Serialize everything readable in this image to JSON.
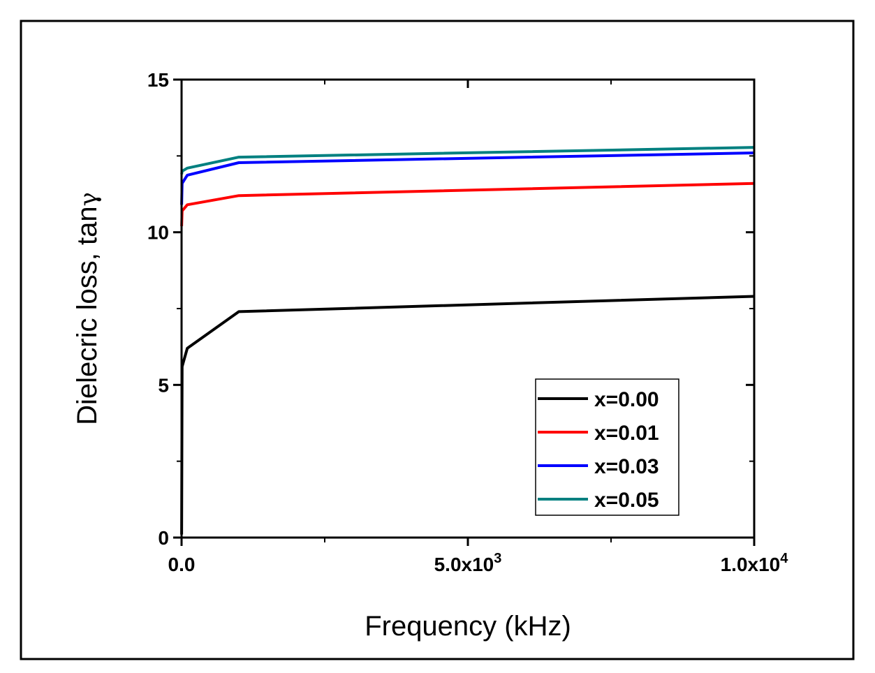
{
  "chart_data": {
    "type": "line",
    "title": "",
    "xlabel": "Frequency (kHz)",
    "ylabel": "Dielecric loss, tan",
    "ylabel_symbol": "γ",
    "xlim": [
      0,
      10000
    ],
    "ylim": [
      0,
      15
    ],
    "x_ticks": [
      {
        "v": 0,
        "label": "0.0"
      },
      {
        "v": 5000,
        "label": "5.0x10",
        "exp": "3"
      },
      {
        "v": 10000,
        "label": "1.0x10",
        "exp": "4"
      }
    ],
    "y_ticks": [
      {
        "v": 0,
        "label": "0"
      },
      {
        "v": 5,
        "label": "5"
      },
      {
        "v": 10,
        "label": "10"
      },
      {
        "v": 15,
        "label": "15"
      }
    ],
    "grid": false,
    "legend_position": "bottom-right",
    "series": [
      {
        "name": "x=0.00",
        "color": "#000000",
        "x": [
          1,
          10,
          100,
          1000,
          10000
        ],
        "y": [
          0.1,
          5.6,
          6.2,
          7.4,
          7.9
        ]
      },
      {
        "name": "x=0.01",
        "color": "#ff0000",
        "x": [
          1,
          10,
          100,
          1000,
          10000
        ],
        "y": [
          10.2,
          10.7,
          10.9,
          11.2,
          11.6
        ]
      },
      {
        "name": "x=0.03",
        "color": "#0000ff",
        "x": [
          1,
          10,
          100,
          1000,
          10000
        ],
        "y": [
          10.9,
          11.6,
          11.87,
          12.28,
          12.6
        ]
      },
      {
        "name": "x=0.05",
        "color": "#008080",
        "x": [
          1,
          10,
          100,
          1000,
          10000
        ],
        "y": [
          11.9,
          12.0,
          12.1,
          12.46,
          12.78
        ]
      }
    ]
  }
}
